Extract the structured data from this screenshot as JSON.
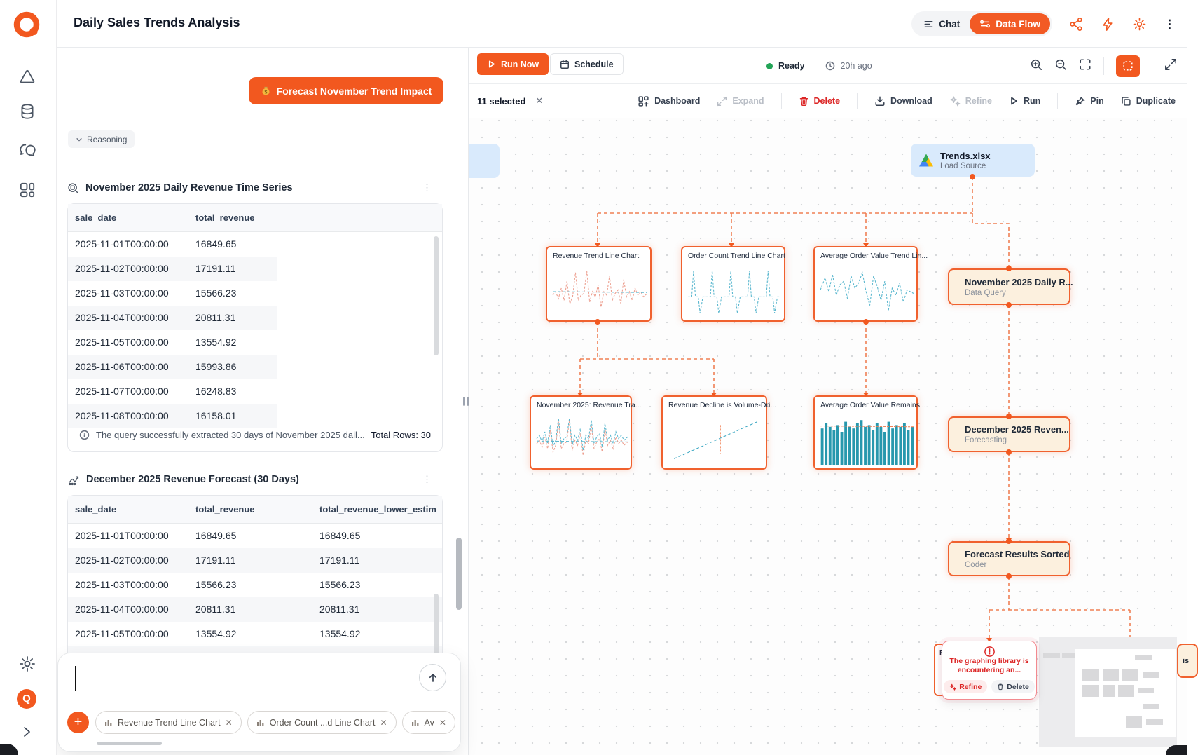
{
  "header": {
    "title": "Daily Sales Trends Analysis",
    "chat_label": "Chat",
    "dataflow_label": "Data Flow"
  },
  "chat_panel": {
    "forecast_button_label": "Forecast November Trend Impact",
    "reasoning_label": "Reasoning",
    "table1": {
      "title": "November 2025 Daily Revenue Time Series",
      "columns": [
        "sale_date",
        "total_revenue"
      ],
      "rows": [
        [
          "2025-11-01T00:00:00",
          "16849.65"
        ],
        [
          "2025-11-02T00:00:00",
          "17191.11"
        ],
        [
          "2025-11-03T00:00:00",
          "15566.23"
        ],
        [
          "2025-11-04T00:00:00",
          "20811.31"
        ],
        [
          "2025-11-05T00:00:00",
          "13554.92"
        ],
        [
          "2025-11-06T00:00:00",
          "15993.86"
        ],
        [
          "2025-11-07T00:00:00",
          "16248.83"
        ],
        [
          "2025-11-08T00:00:00",
          "16158.01"
        ]
      ],
      "footer_note": "The query successfully extracted 30 days of November 2025 dail...",
      "total_rows": "Total Rows: 30"
    },
    "table2": {
      "title": "December 2025 Revenue Forecast (30 Days)",
      "columns": [
        "sale_date",
        "total_revenue",
        "total_revenue_lower_estim"
      ],
      "rows": [
        [
          "2025-11-01T00:00:00",
          "16849.65",
          "16849.65"
        ],
        [
          "2025-11-02T00:00:00",
          "17191.11",
          "17191.11"
        ],
        [
          "2025-11-03T00:00:00",
          "15566.23",
          "15566.23"
        ],
        [
          "2025-11-04T00:00:00",
          "20811.31",
          "20811.31"
        ],
        [
          "2025-11-05T00:00:00",
          "13554.92",
          "13554.92"
        ]
      ]
    },
    "input": {
      "chips": [
        "Revenue Trend Line Chart",
        "Order Count ...d Line Chart",
        "Av"
      ]
    }
  },
  "canvas": {
    "toolbar": {
      "run_now": "Run Now",
      "schedule": "Schedule",
      "status": "Ready",
      "last_run": "20h ago"
    },
    "selection_bar": {
      "selected_count": "11 selected",
      "actions": {
        "dashboard": "Dashboard",
        "expand": "Expand",
        "delete": "Delete",
        "download": "Download",
        "refine": "Refine",
        "run": "Run",
        "pin": "Pin",
        "duplicate": "Duplicate"
      }
    },
    "source_node": {
      "title": "Trends.xlsx",
      "subtitle": "Load Source"
    },
    "chart_nodes": {
      "revenue_trend": {
        "title": "Revenue Trend Line Chart"
      },
      "order_count": {
        "title": "Order Count Trend Line Chart"
      },
      "aov_trend": {
        "title": "Average Order Value Trend Lin..."
      },
      "nov_revenue": {
        "title": "November 2025: Revenue Tra..."
      },
      "revenue_decline": {
        "title": "Revenue Decline is Volume-Dri..."
      },
      "aov_remains": {
        "title": "Average Order Value Remains ..."
      }
    },
    "step_nodes": {
      "data_query": {
        "title": "November 2025 Daily R...",
        "subtitle": "Data Query"
      },
      "forecasting": {
        "title": "December 2025 Reven...",
        "subtitle": "Forecasting"
      },
      "coder": {
        "title": "Forecast Results Sorted",
        "subtitle": "Coder"
      }
    },
    "error_node": {
      "message_line1": "The graphing library is",
      "message_line2": "encountering an...",
      "refine_label": "Refine",
      "delete_label": "Delete"
    },
    "clipped_left_node_text": "R",
    "clipped_right_node_text": "is"
  },
  "colors": {
    "accent": "#f2581f",
    "node_border": "#f0612e",
    "cream": "#fcf0de",
    "source_blue": "#d9eafc",
    "teal": "#2f9fb7",
    "salmon": "#eda091",
    "error_red": "#dc2626",
    "status_green": "#23a457"
  }
}
